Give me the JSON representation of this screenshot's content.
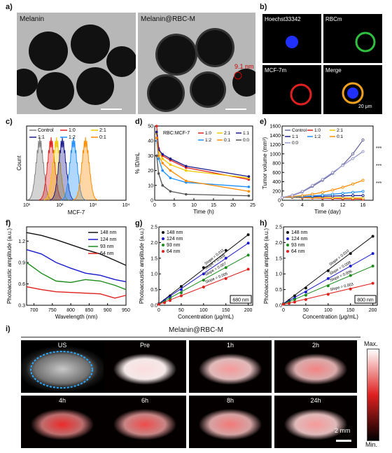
{
  "panel_labels": {
    "a": "a)",
    "b": "b)",
    "c": "c)",
    "d": "d)",
    "e": "e)",
    "f": "f)",
    "g": "g)",
    "h": "h)",
    "i": "i)"
  },
  "a": {
    "left_title": "Melanin",
    "right_title": "Melanin@RBC-M",
    "annotation": "9.1 nm"
  },
  "b": {
    "tiles": [
      "Hoechst33342",
      "RBCm",
      "MCF-7m",
      "Merge"
    ],
    "scale": "20 μm"
  },
  "chart_data": [
    {
      "type": "histogram",
      "panel": "c",
      "xlabel": "MCF-7",
      "ylabel": "Count",
      "xticks": [
        "10¹",
        "10²",
        "10³",
        "10⁴"
      ],
      "series": [
        {
          "name": "Control",
          "color": "#808080",
          "peak": 25
        },
        {
          "name": "1:0",
          "color": "#e0201c",
          "peak": 55
        },
        {
          "name": "2:1",
          "color": "#f0c800",
          "peak": 80
        },
        {
          "name": "1:1",
          "color": "#1a1a8c",
          "peak": 120
        },
        {
          "name": "1:2",
          "color": "#1e90ff",
          "peak": 260
        },
        {
          "name": "0:1",
          "color": "#ff8c00",
          "peak": 600
        }
      ]
    },
    {
      "type": "line",
      "panel": "d",
      "title": "RBC:MCF-7",
      "xlabel": "Time (h)",
      "ylabel": "% ID/mL",
      "xlim": [
        0,
        25
      ],
      "ylim": [
        0,
        50
      ],
      "xticks": [
        0,
        5,
        10,
        15,
        20,
        25
      ],
      "yticks": [
        0,
        10,
        20,
        30,
        40,
        50
      ],
      "x": [
        0.5,
        1,
        2,
        4,
        8,
        24
      ],
      "series": [
        {
          "name": "1:0",
          "color": "#e0201c",
          "values": [
            50,
            35,
            30,
            27,
            22,
            14
          ]
        },
        {
          "name": "2:1",
          "color": "#f0c800",
          "values": [
            45,
            33,
            28,
            24,
            20,
            15
          ]
        },
        {
          "name": "1:1",
          "color": "#1a1a8c",
          "values": [
            46,
            34,
            31,
            28,
            23,
            16
          ]
        },
        {
          "name": "1:2",
          "color": "#1e90ff",
          "values": [
            40,
            28,
            20,
            15,
            12,
            9
          ]
        },
        {
          "name": "0:1",
          "color": "#ff8c00",
          "values": [
            42,
            30,
            25,
            20,
            13,
            6
          ]
        },
        {
          "name": "0:0",
          "color": "#555555",
          "values": [
            30,
            18,
            10,
            6,
            4,
            3
          ]
        }
      ]
    },
    {
      "type": "line",
      "panel": "e",
      "xlabel": "Time (day)",
      "ylabel": "Tumor volume (mm³)",
      "xlim": [
        0,
        18
      ],
      "ylim": [
        0,
        1600
      ],
      "xticks": [
        0,
        4,
        8,
        12,
        16
      ],
      "yticks": [
        0,
        200,
        400,
        600,
        800,
        1000,
        1200,
        1400,
        1600
      ],
      "x": [
        0,
        2,
        4,
        6,
        8,
        10,
        12,
        14,
        16
      ],
      "series": [
        {
          "name": "Control",
          "color": "#6a6aa0",
          "values": [
            60,
            100,
            180,
            300,
            430,
            580,
            760,
            1000,
            1300
          ]
        },
        {
          "name": "1:0",
          "color": "#e0201c",
          "values": [
            60,
            60,
            55,
            50,
            45,
            40,
            35,
            30,
            25
          ]
        },
        {
          "name": "2:1",
          "color": "#f0c800",
          "values": [
            60,
            65,
            65,
            60,
            60,
            55,
            55,
            50,
            50
          ]
        },
        {
          "name": "1:1",
          "color": "#1a1a8c",
          "values": [
            60,
            70,
            75,
            80,
            85,
            90,
            95,
            100,
            100
          ]
        },
        {
          "name": "1:2",
          "color": "#1e90ff",
          "values": [
            60,
            70,
            80,
            95,
            110,
            130,
            150,
            170,
            190
          ]
        },
        {
          "name": "0:1",
          "color": "#ff8c00",
          "values": [
            60,
            80,
            100,
            130,
            170,
            220,
            280,
            350,
            430
          ]
        },
        {
          "name": "0:0",
          "color": "#9a9ad0",
          "values": [
            60,
            110,
            190,
            320,
            450,
            600,
            750,
            900,
            1050
          ]
        }
      ],
      "annotations": [
        "***",
        "***",
        "***"
      ]
    },
    {
      "type": "line",
      "panel": "f",
      "xlabel": "Wavelength (nm)",
      "ylabel": "Photoacoustic amplitude (a.u.)",
      "xlim": [
        680,
        950
      ],
      "ylim": [
        0.3,
        1.4
      ],
      "xticks": [
        700,
        750,
        800,
        850,
        900,
        950
      ],
      "yticks": [
        0.3,
        0.6,
        0.9,
        1.2
      ],
      "x": [
        680,
        720,
        760,
        800,
        840,
        880,
        920,
        950
      ],
      "series": [
        {
          "name": "148 nm",
          "color": "#111111",
          "values": [
            1.32,
            1.28,
            1.22,
            1.15,
            1.08,
            1.02,
            0.93,
            0.86
          ]
        },
        {
          "name": "124 nm",
          "color": "#1a1acc",
          "values": [
            1.08,
            1.02,
            0.9,
            0.82,
            0.75,
            0.72,
            0.66,
            0.63
          ]
        },
        {
          "name": "93 nm",
          "color": "#1a8c1a",
          "values": [
            0.9,
            0.75,
            0.64,
            0.62,
            0.66,
            0.64,
            0.58,
            0.52
          ]
        },
        {
          "name": "64 nm",
          "color": "#e0201c",
          "values": [
            0.56,
            0.52,
            0.49,
            0.48,
            0.47,
            0.46,
            0.4,
            0.44
          ]
        }
      ]
    },
    {
      "type": "scatter",
      "panel": "g",
      "xlabel": "Concentration (μg/mL)",
      "ylabel": "Photoacoustic amplitude (a.u.)",
      "box_label": "680 nm",
      "xlim": [
        0,
        210
      ],
      "ylim": [
        0,
        2.5
      ],
      "xticks": [
        0,
        50,
        100,
        150,
        200
      ],
      "yticks": [
        0.0,
        0.5,
        1.0,
        1.5,
        2.0,
        2.5
      ],
      "x": [
        0,
        12.5,
        25,
        50,
        100,
        150,
        200
      ],
      "series": [
        {
          "name": "148 nm",
          "color": "#111111",
          "slope": "Slope = 0.011",
          "values": [
            0.05,
            0.15,
            0.3,
            0.6,
            1.2,
            1.75,
            2.25
          ]
        },
        {
          "name": "124 nm",
          "color": "#1a1acc",
          "slope": "Slope = 0.009",
          "values": [
            0.05,
            0.13,
            0.25,
            0.5,
            1.0,
            1.5,
            1.98
          ]
        },
        {
          "name": "93 nm",
          "color": "#1a8c1a",
          "slope": "Slope = 0.007",
          "values": [
            0.04,
            0.1,
            0.2,
            0.4,
            0.8,
            1.2,
            1.6
          ]
        },
        {
          "name": "64 nm",
          "color": "#e0201c",
          "slope": "Slope = 0.005",
          "values": [
            0.03,
            0.08,
            0.15,
            0.3,
            0.58,
            0.85,
            1.15
          ]
        }
      ]
    },
    {
      "type": "scatter",
      "panel": "h",
      "xlabel": "Concentration (μg/mL)",
      "ylabel": "Photoacoustic amplitude (a.u.)",
      "box_label": "800 nm",
      "xlim": [
        0,
        210
      ],
      "ylim": [
        0,
        2.5
      ],
      "xticks": [
        0,
        50,
        100,
        150,
        200
      ],
      "yticks": [
        0.0,
        0.5,
        1.0,
        1.5,
        2.0,
        2.5
      ],
      "x": [
        0,
        12.5,
        25,
        50,
        100,
        150,
        200
      ],
      "series": [
        {
          "name": "148 nm",
          "color": "#111111",
          "slope": "Slope = 0.010",
          "values": [
            0.05,
            0.15,
            0.3,
            0.55,
            1.1,
            1.65,
            2.2
          ]
        },
        {
          "name": "124 nm",
          "color": "#1a1acc",
          "slope": "Slope = 0.008",
          "values": [
            0.05,
            0.12,
            0.22,
            0.42,
            0.85,
            1.25,
            1.65
          ]
        },
        {
          "name": "93 nm",
          "color": "#1a8c1a",
          "slope": "Slope = 0.006",
          "values": [
            0.04,
            0.1,
            0.18,
            0.32,
            0.62,
            0.95,
            1.25
          ]
        },
        {
          "name": "64 nm",
          "color": "#e0201c",
          "slope": "Slope = 0.003",
          "values": [
            0.03,
            0.06,
            0.1,
            0.18,
            0.35,
            0.52,
            0.7
          ]
        }
      ]
    }
  ],
  "i": {
    "title": "Melanin@RBC-M",
    "frames": [
      "US",
      "Pre",
      "1h",
      "2h",
      "4h",
      "6h",
      "8h",
      "24h"
    ],
    "frame_intensity": [
      0,
      0.15,
      0.45,
      0.55,
      0.95,
      0.8,
      0.6,
      0.45
    ],
    "scale": "2 mm",
    "colorbar_max": "Max.",
    "colorbar_min": "Min."
  }
}
